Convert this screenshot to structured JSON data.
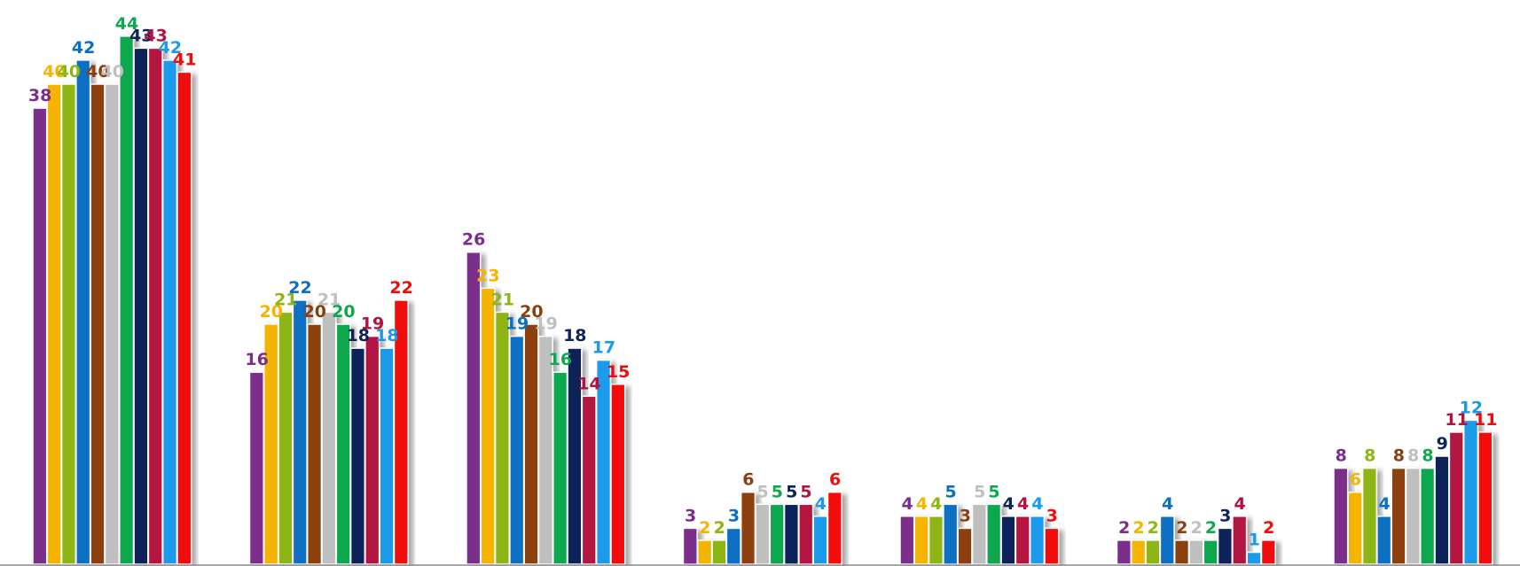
{
  "chart_data": {
    "type": "bar",
    "title": "",
    "xlabel": "",
    "ylabel": "",
    "ylim": [
      0,
      48
    ],
    "grid": false,
    "legend": "none",
    "categories": [
      "",
      "",
      "",
      "",
      "",
      "",
      ""
    ],
    "series": [
      {
        "color": "#7B2D8B",
        "values": [
          38,
          16,
          26,
          3,
          4,
          2,
          8
        ]
      },
      {
        "color": "#F4B400",
        "values": [
          40,
          20,
          23,
          2,
          4,
          2,
          6
        ]
      },
      {
        "color": "#8DB514",
        "values": [
          40,
          21,
          21,
          2,
          4,
          2,
          8
        ]
      },
      {
        "color": "#0B6FC2",
        "values": [
          42,
          22,
          19,
          3,
          5,
          4,
          4
        ]
      },
      {
        "color": "#8B3F10",
        "values": [
          40,
          20,
          20,
          6,
          3,
          2,
          8
        ]
      },
      {
        "color": "#BFBFBF",
        "values": [
          40,
          21,
          19,
          5,
          5,
          2,
          8
        ]
      },
      {
        "color": "#0FA84E",
        "values": [
          44,
          20,
          16,
          5,
          5,
          2,
          8
        ]
      },
      {
        "color": "#0E2358",
        "values": [
          43,
          18,
          18,
          5,
          4,
          3,
          9
        ]
      },
      {
        "color": "#B3123F",
        "values": [
          43,
          19,
          14,
          5,
          4,
          4,
          11
        ]
      },
      {
        "color": "#1A9BEA",
        "values": [
          42,
          18,
          17,
          4,
          4,
          1,
          12
        ]
      },
      {
        "color": "#F20A0A",
        "values": [
          41,
          22,
          15,
          6,
          3,
          2,
          11
        ]
      }
    ]
  }
}
